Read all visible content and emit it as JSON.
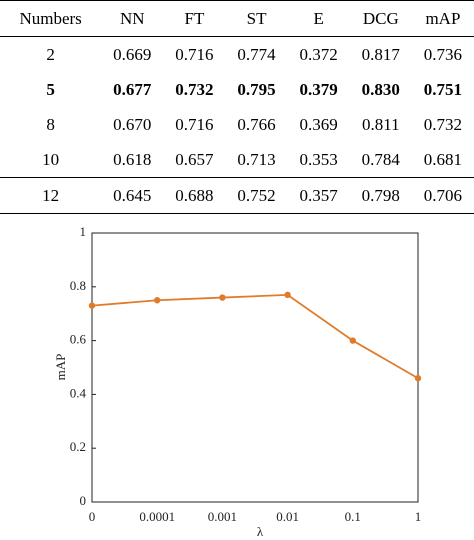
{
  "table": {
    "header": [
      "Numbers",
      "NN",
      "FT",
      "ST",
      "E",
      "DCG",
      "mAP"
    ],
    "rows": [
      [
        "2",
        "0.669",
        "0.716",
        "0.774",
        "0.372",
        "0.817",
        "0.736"
      ],
      [
        "5",
        "0.677",
        "0.732",
        "0.795",
        "0.379",
        "0.830",
        "0.751"
      ],
      [
        "8",
        "0.670",
        "0.716",
        "0.766",
        "0.369",
        "0.811",
        "0.732"
      ],
      [
        "10",
        "0.618",
        "0.657",
        "0.713",
        "0.353",
        "0.784",
        "0.681"
      ],
      [
        "12",
        "0.645",
        "0.688",
        "0.752",
        "0.357",
        "0.798",
        "0.706"
      ]
    ]
  },
  "chart_data": {
    "type": "line",
    "x_label": "λ",
    "y_label": "mAP",
    "categories": [
      "0",
      "0.0001",
      "0.001",
      "0.01",
      "0.1",
      "1"
    ],
    "series": [
      {
        "name": "mAP",
        "color": "#e07b2a",
        "values": [
          0.73,
          0.75,
          0.76,
          0.77,
          0.6,
          0.46
        ]
      }
    ],
    "ylim": [
      0,
      1
    ],
    "yticks": [
      0,
      0.2,
      0.4,
      0.6,
      0.8,
      1
    ]
  }
}
